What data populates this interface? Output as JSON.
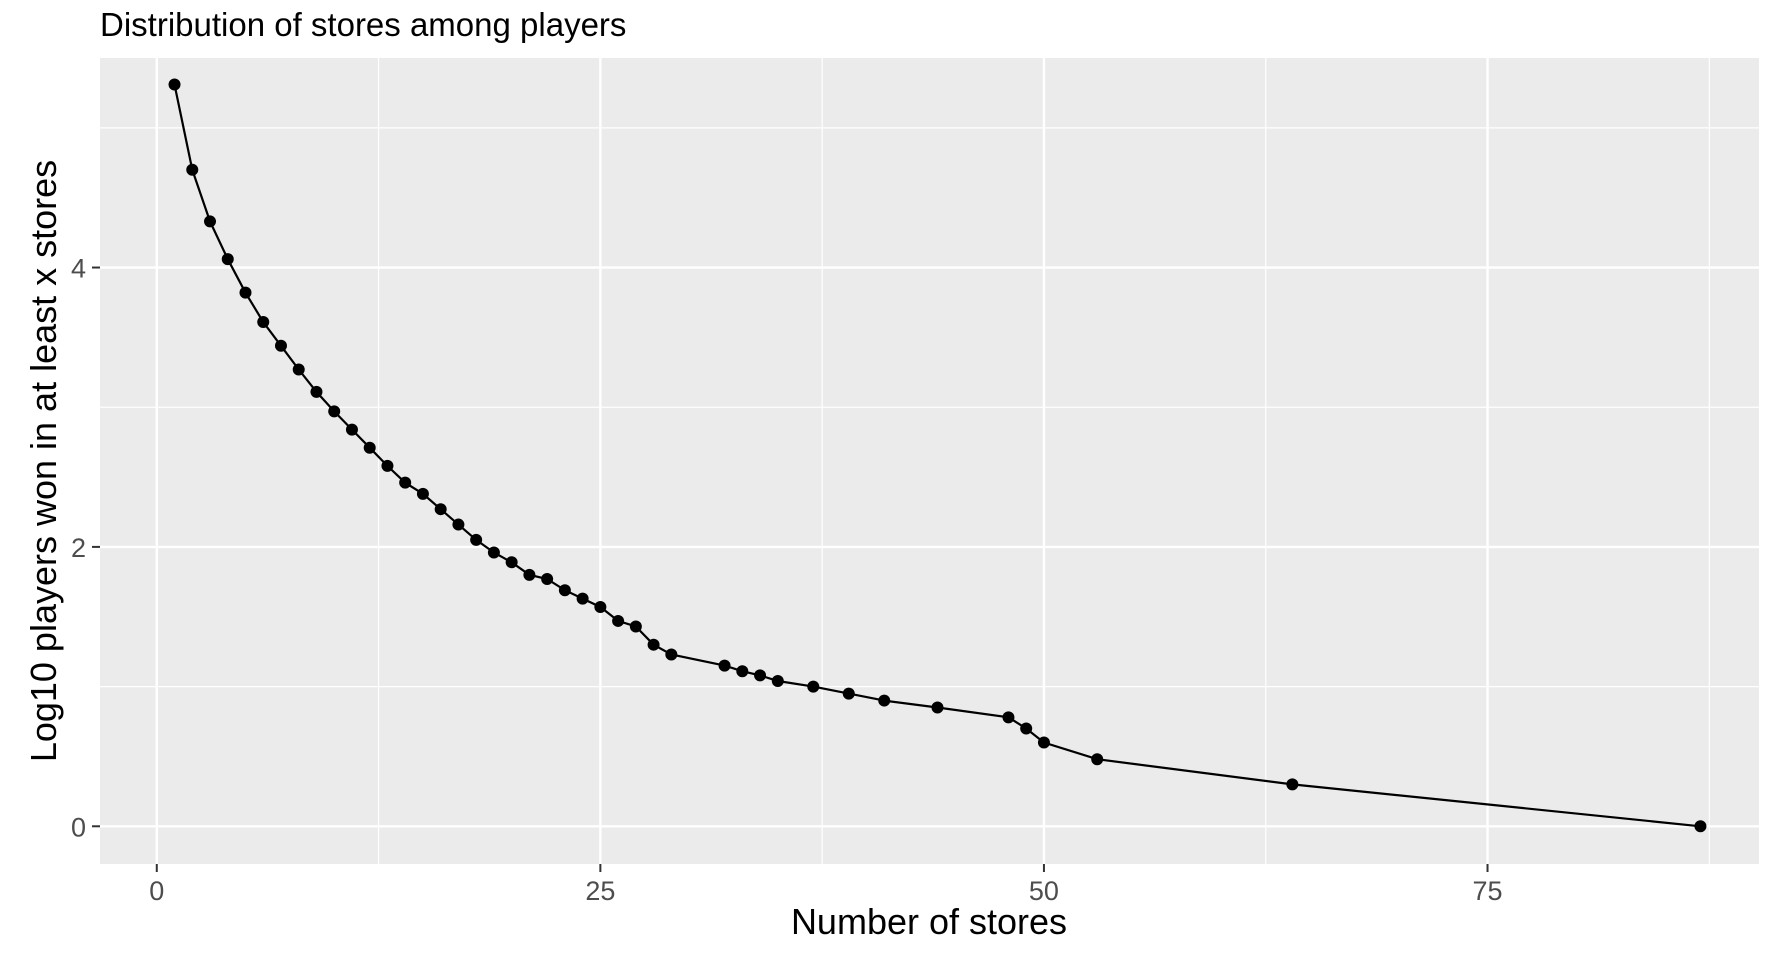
{
  "chart_data": {
    "type": "line",
    "title": "Distribution of stores among players",
    "xlabel": "Number of stores",
    "ylabel": "Log10 players won in at least x stores",
    "xlim": [
      -3.2,
      90.3
    ],
    "ylim": [
      -0.27,
      5.5
    ],
    "x_ticks": [
      0,
      25,
      50,
      75
    ],
    "x_tick_labels": [
      "0",
      "25",
      "50",
      "75"
    ],
    "y_ticks": [
      0,
      2,
      4
    ],
    "y_tick_labels": [
      "0",
      "2",
      "4"
    ],
    "grid": true,
    "markers": true,
    "colors": {
      "panel": "#ebebeb",
      "grid": "#ffffff",
      "series": "#000000",
      "tick_label": "#4d4d4d"
    },
    "series": [
      {
        "x": [
          1,
          2,
          3,
          4,
          5,
          6,
          7,
          8,
          9,
          10,
          11,
          12,
          13,
          14,
          15,
          16,
          17,
          18,
          19,
          20,
          21,
          22,
          23,
          24,
          25,
          26,
          27,
          28,
          29,
          32,
          33,
          34,
          35,
          37,
          39,
          41,
          44,
          48,
          49,
          50,
          53,
          64,
          87
        ],
        "y": [
          5.31,
          4.7,
          4.33,
          4.06,
          3.82,
          3.61,
          3.44,
          3.27,
          3.11,
          2.97,
          2.84,
          2.71,
          2.58,
          2.46,
          2.38,
          2.27,
          2.16,
          2.05,
          1.96,
          1.89,
          1.8,
          1.77,
          1.69,
          1.63,
          1.57,
          1.47,
          1.43,
          1.3,
          1.23,
          1.15,
          1.11,
          1.08,
          1.04,
          1.0,
          0.95,
          0.9,
          0.85,
          0.78,
          0.7,
          0.6,
          0.48,
          0.3,
          0.0
        ]
      }
    ]
  }
}
